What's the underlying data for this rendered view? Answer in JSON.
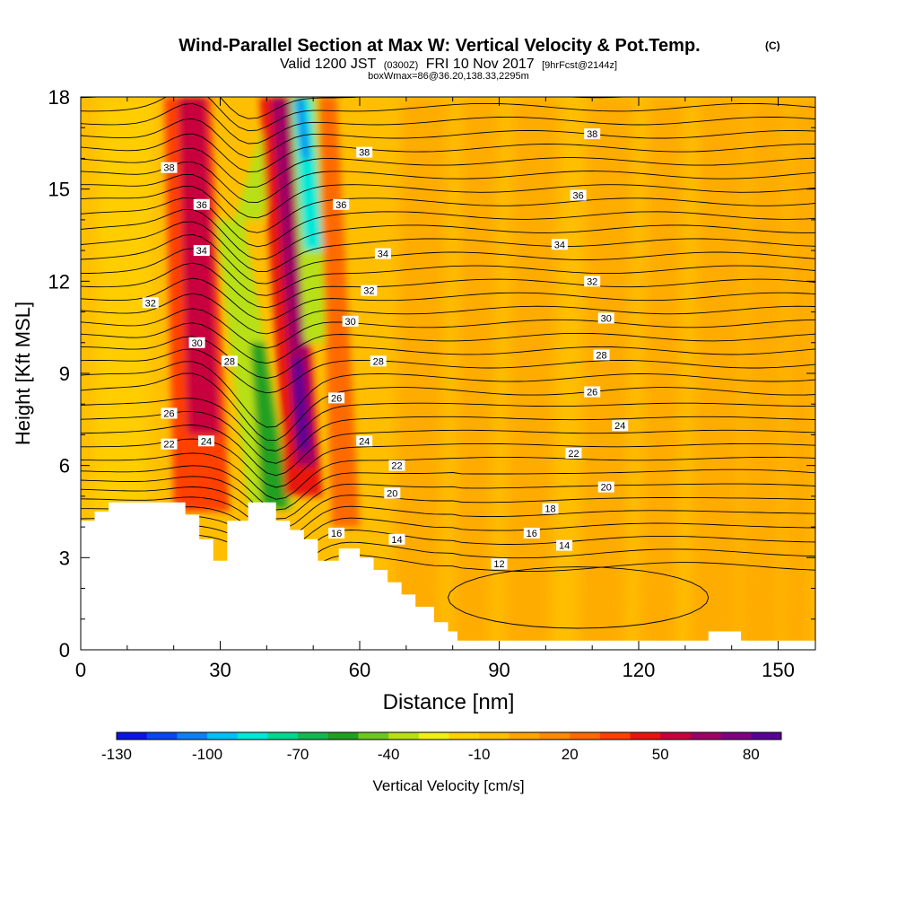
{
  "chart_data": {
    "type": "heatmap",
    "title": "Wind-Parallel Section at Max W: Vertical Velocity & Pot.Temp.",
    "copyright": "(C)",
    "subtitle": {
      "valid": "Valid 1200 JST",
      "utc": "(0300Z)",
      "date": "FRI 10 Nov 2017",
      "fcst": "[9hrFcst@2144z]"
    },
    "boxinfo": "boxWmax=86@36.20,138.33,2295m",
    "xlabel": "Distance [nm]",
    "ylabel": "Height [Kft MSL]",
    "xlim": [
      0,
      158
    ],
    "ylim": [
      0,
      18
    ],
    "xticks": [
      0,
      30,
      60,
      90,
      120,
      150
    ],
    "yticks": [
      0,
      3,
      6,
      9,
      12,
      15,
      18
    ],
    "colorbar": {
      "label": "Vertical Velocity [cm/s]",
      "min": -130,
      "max": 90,
      "step": 10,
      "tick_values": [
        -130,
        -100,
        -70,
        -40,
        -10,
        20,
        50,
        80
      ],
      "tick_labels": [
        "-130",
        "-100",
        "-70",
        "-40",
        "-10",
        "20",
        "50",
        "80"
      ],
      "colors": [
        "#0a14e6",
        "#0a46f0",
        "#0a82f5",
        "#00c0f5",
        "#00e8d8",
        "#00d890",
        "#12b850",
        "#20a020",
        "#6cc81c",
        "#b8e014",
        "#f0f014",
        "#ffd200",
        "#ffbf00",
        "#ffa500",
        "#ff8a00",
        "#ff6a00",
        "#ff4000",
        "#e81410",
        "#c8003c",
        "#a00064",
        "#800082",
        "#5a0096"
      ]
    },
    "terrain": [
      [
        0,
        4.2
      ],
      [
        3,
        4.2
      ],
      [
        3,
        4.5
      ],
      [
        6,
        4.5
      ],
      [
        6,
        4.8
      ],
      [
        22.5,
        4.8
      ],
      [
        22.5,
        4.4
      ],
      [
        25.5,
        4.4
      ],
      [
        25.5,
        3.6
      ],
      [
        28.5,
        3.6
      ],
      [
        28.5,
        2.9
      ],
      [
        31.5,
        2.9
      ],
      [
        31.5,
        4.2
      ],
      [
        36,
        4.2
      ],
      [
        36,
        4.8
      ],
      [
        42,
        4.8
      ],
      [
        42,
        4.2
      ],
      [
        45,
        4.2
      ],
      [
        45,
        3.9
      ],
      [
        48,
        3.9
      ],
      [
        48,
        3.6
      ],
      [
        51,
        3.6
      ],
      [
        51,
        2.9
      ],
      [
        55.5,
        2.9
      ],
      [
        55.5,
        3.3
      ],
      [
        60,
        3.3
      ],
      [
        60,
        3.0
      ],
      [
        63,
        3.0
      ],
      [
        63,
        2.6
      ],
      [
        66,
        2.6
      ],
      [
        66,
        2.2
      ],
      [
        69,
        2.2
      ],
      [
        69,
        1.8
      ],
      [
        72,
        1.8
      ],
      [
        72,
        1.4
      ],
      [
        76,
        1.4
      ],
      [
        76,
        0.9
      ],
      [
        79,
        0.9
      ],
      [
        79,
        0.6
      ],
      [
        81,
        0.6
      ],
      [
        81,
        0.3
      ],
      [
        135,
        0.3
      ],
      [
        135,
        0.6
      ],
      [
        142,
        0.6
      ],
      [
        142,
        0.3
      ],
      [
        158,
        0.3
      ]
    ],
    "isentropes": [
      {
        "value": 12,
        "label_at": [
          90,
          2.8
        ]
      },
      {
        "value": 14,
        "label_at": [
          68,
          3.6
        ]
      },
      {
        "value": 14,
        "label_at": [
          104,
          3.4
        ]
      },
      {
        "value": 16,
        "label_at": [
          97,
          3.8
        ]
      },
      {
        "value": 16,
        "label_at": [
          55,
          3.8
        ]
      },
      {
        "value": 18,
        "label_at": [
          101,
          4.6
        ]
      },
      {
        "value": 20,
        "label_at": [
          67,
          5.1
        ]
      },
      {
        "value": 20,
        "label_at": [
          113,
          5.3
        ]
      },
      {
        "value": 22,
        "label_at": [
          19,
          6.7
        ]
      },
      {
        "value": 22,
        "label_at": [
          68,
          6.0
        ]
      },
      {
        "value": 22,
        "label_at": [
          106,
          6.4
        ]
      },
      {
        "value": 24,
        "label_at": [
          27,
          6.8
        ]
      },
      {
        "value": 24,
        "label_at": [
          61,
          6.8
        ]
      },
      {
        "value": 24,
        "label_at": [
          116,
          7.3
        ]
      },
      {
        "value": 26,
        "label_at": [
          19,
          7.7
        ]
      },
      {
        "value": 26,
        "label_at": [
          55,
          8.2
        ]
      },
      {
        "value": 26,
        "label_at": [
          110,
          8.4
        ]
      },
      {
        "value": 28,
        "label_at": [
          32,
          9.4
        ]
      },
      {
        "value": 28,
        "label_at": [
          64,
          9.4
        ]
      },
      {
        "value": 28,
        "label_at": [
          112,
          9.6
        ]
      },
      {
        "value": 30,
        "label_at": [
          25,
          10.0
        ]
      },
      {
        "value": 30,
        "label_at": [
          58,
          10.7
        ]
      },
      {
        "value": 30,
        "label_at": [
          113,
          10.8
        ]
      },
      {
        "value": 32,
        "label_at": [
          15,
          11.3
        ]
      },
      {
        "value": 32,
        "label_at": [
          62,
          11.7
        ]
      },
      {
        "value": 32,
        "label_at": [
          110,
          12.0
        ]
      },
      {
        "value": 34,
        "label_at": [
          26,
          13.0
        ]
      },
      {
        "value": 34,
        "label_at": [
          65,
          12.9
        ]
      },
      {
        "value": 34,
        "label_at": [
          103,
          13.2
        ]
      },
      {
        "value": 36,
        "label_at": [
          26,
          14.5
        ]
      },
      {
        "value": 36,
        "label_at": [
          56,
          14.5
        ]
      },
      {
        "value": 36,
        "label_at": [
          107,
          14.8
        ]
      },
      {
        "value": 38,
        "label_at": [
          19,
          15.7
        ]
      },
      {
        "value": 38,
        "label_at": [
          61,
          16.2
        ]
      },
      {
        "value": 38,
        "label_at": [
          110,
          16.8
        ]
      }
    ],
    "contour_count": 36
  }
}
